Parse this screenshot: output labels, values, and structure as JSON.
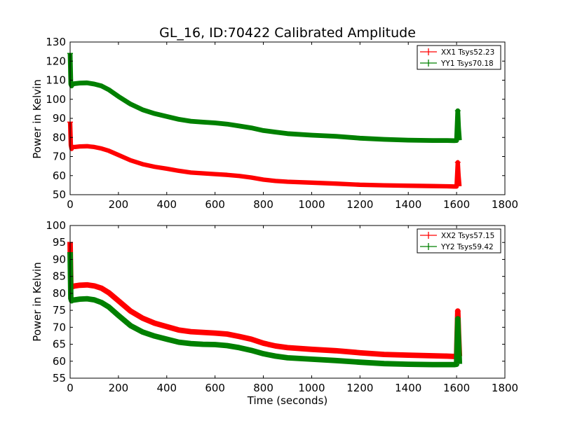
{
  "chart_data": [
    {
      "type": "line",
      "title": "GL_16, ID:70422 Calibrated Amplitude",
      "xlabel": "",
      "ylabel": "Power in Kelvin",
      "xlim": [
        0,
        1800
      ],
      "ylim": [
        50,
        130
      ],
      "xticks": [
        "0",
        "200",
        "400",
        "600",
        "800",
        "1000",
        "1200",
        "1400",
        "1600",
        "1800"
      ],
      "yticks": [
        "50",
        "60",
        "70",
        "80",
        "90",
        "100",
        "110",
        "120",
        "130"
      ],
      "legend_placement": "top-right",
      "series": [
        {
          "name": "XX1 Tsys52.23",
          "color": "#ff0000",
          "x": [
            0,
            3,
            6,
            10,
            20,
            40,
            70,
            100,
            130,
            160,
            200,
            250,
            300,
            350,
            400,
            450,
            500,
            550,
            600,
            650,
            700,
            750,
            800,
            850,
            900,
            1000,
            1100,
            1200,
            1300,
            1400,
            1500,
            1560,
            1590,
            1600,
            1605,
            1608,
            1612
          ],
          "y": [
            88,
            76,
            74,
            75,
            75,
            75.3,
            75.4,
            75,
            74.2,
            73,
            70.8,
            68,
            66,
            64.6,
            63.6,
            62.5,
            61.6,
            61.2,
            60.8,
            60.4,
            59.8,
            59,
            57.9,
            57.2,
            56.8,
            56.3,
            55.8,
            55.2,
            54.9,
            54.7,
            54.5,
            54.4,
            54.3,
            54.3,
            67,
            60,
            54.4
          ],
          "error_band": 0.6
        },
        {
          "name": "YY1 Tsys70.18",
          "color": "#008000",
          "x": [
            0,
            3,
            6,
            10,
            20,
            40,
            70,
            100,
            130,
            160,
            200,
            250,
            300,
            350,
            400,
            450,
            500,
            550,
            600,
            650,
            700,
            750,
            800,
            850,
            900,
            1000,
            1100,
            1200,
            1300,
            1400,
            1500,
            1560,
            1590,
            1600,
            1605,
            1608,
            1612
          ],
          "y": [
            124,
            108,
            107,
            108,
            108.2,
            108.5,
            108.6,
            108,
            107,
            105,
            101.5,
            97.5,
            94.5,
            92.5,
            91,
            89.5,
            88.5,
            88,
            87.6,
            87,
            86,
            85,
            83.6,
            82.8,
            82,
            81.2,
            80.6,
            79.6,
            79,
            78.6,
            78.4,
            78.4,
            78.3,
            78.4,
            94,
            85,
            78.5
          ],
          "error_band": 0.7
        }
      ]
    },
    {
      "type": "line",
      "title": "",
      "xlabel": "Time (seconds)",
      "ylabel": "Power in Kelvin",
      "xlim": [
        0,
        1800
      ],
      "ylim": [
        55,
        100
      ],
      "xticks": [
        "0",
        "200",
        "400",
        "600",
        "800",
        "1000",
        "1200",
        "1400",
        "1600",
        "1800"
      ],
      "yticks": [
        "55",
        "60",
        "65",
        "70",
        "75",
        "80",
        "85",
        "90",
        "95",
        "100"
      ],
      "legend_placement": "top-right",
      "series": [
        {
          "name": "XX2 Tsys57.15",
          "color": "#ff0000",
          "x": [
            0,
            3,
            6,
            10,
            20,
            40,
            70,
            100,
            130,
            160,
            200,
            250,
            300,
            350,
            400,
            450,
            500,
            550,
            600,
            650,
            700,
            750,
            800,
            850,
            900,
            1000,
            1100,
            1200,
            1300,
            1400,
            1500,
            1560,
            1590,
            1600,
            1605,
            1608,
            1612
          ],
          "y": [
            95,
            82.5,
            82,
            82,
            82.2,
            82.4,
            82.5,
            82.2,
            81.5,
            80.2,
            77.8,
            74.8,
            72.7,
            71.2,
            70.2,
            69.2,
            68.7,
            68.5,
            68.3,
            68,
            67.3,
            66.5,
            65.3,
            64.5,
            64,
            63.5,
            63.1,
            62.5,
            62,
            61.8,
            61.6,
            61.5,
            61.4,
            61.5,
            74.8,
            68,
            61.5
          ],
          "error_band": 0.5
        },
        {
          "name": "YY2 Tsys59.42",
          "color": "#008000",
          "x": [
            0,
            3,
            6,
            10,
            20,
            40,
            70,
            100,
            130,
            160,
            200,
            250,
            300,
            350,
            400,
            450,
            500,
            550,
            600,
            650,
            700,
            750,
            800,
            850,
            900,
            1000,
            1100,
            1200,
            1300,
            1400,
            1500,
            1560,
            1590,
            1600,
            1605,
            1608,
            1612
          ],
          "y": [
            92,
            78.5,
            77.8,
            78,
            78.1,
            78.3,
            78.4,
            78.1,
            77.3,
            76,
            73.5,
            70.5,
            68.6,
            67.4,
            66.5,
            65.6,
            65.2,
            65,
            64.9,
            64.6,
            64,
            63.2,
            62.2,
            61.5,
            61,
            60.6,
            60.2,
            59.7,
            59.3,
            59.1,
            59,
            59,
            59,
            59.1,
            72.5,
            66,
            59.2
          ],
          "error_band": 0.5
        }
      ]
    }
  ]
}
